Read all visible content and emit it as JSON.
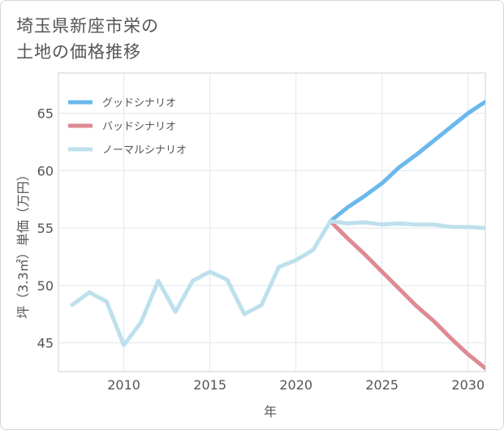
{
  "chart_data": {
    "type": "line",
    "title_lines": [
      "埼玉県新座市栄の",
      "土地の価格推移"
    ],
    "xlabel": "年",
    "ylabel": "坪（3.3㎡）単価（万円）",
    "xlim": [
      2006.2,
      2031
    ],
    "ylim": [
      42.5,
      68.5
    ],
    "xticks": [
      2010,
      2015,
      2020,
      2025,
      2030
    ],
    "yticks": [
      45,
      50,
      55,
      60,
      65
    ],
    "grid": true,
    "legend_position": "top-left",
    "series": [
      {
        "name": "グッドシナリオ",
        "color": "#6bb9ec",
        "x": [
          2022,
          2023,
          2024,
          2025,
          2026,
          2027,
          2028,
          2029,
          2030,
          2031
        ],
        "values": [
          55.6,
          56.8,
          57.8,
          58.9,
          60.3,
          61.4,
          62.6,
          63.8,
          65.0,
          66.0
        ]
      },
      {
        "name": "バッドシナリオ",
        "color": "#de8a93",
        "x": [
          2022,
          2023,
          2024,
          2025,
          2026,
          2027,
          2028,
          2029,
          2030,
          2031
        ],
        "values": [
          55.6,
          54.1,
          52.7,
          51.2,
          49.7,
          48.2,
          46.9,
          45.4,
          44.0,
          42.8
        ]
      },
      {
        "name": "ノーマルシナリオ",
        "color": "#bde0ec",
        "x": [
          2007,
          2008,
          2009,
          2010,
          2011,
          2012,
          2013,
          2014,
          2015,
          2016,
          2017,
          2018,
          2019,
          2020,
          2021,
          2022,
          2023,
          2024,
          2025,
          2026,
          2027,
          2028,
          2029,
          2030,
          2031
        ],
        "values": [
          48.3,
          49.4,
          48.6,
          44.8,
          46.8,
          50.4,
          47.7,
          50.4,
          51.2,
          50.5,
          47.5,
          48.3,
          51.6,
          52.2,
          53.1,
          55.6,
          55.4,
          55.5,
          55.3,
          55.4,
          55.3,
          55.3,
          55.1,
          55.1,
          55.0
        ]
      }
    ]
  }
}
